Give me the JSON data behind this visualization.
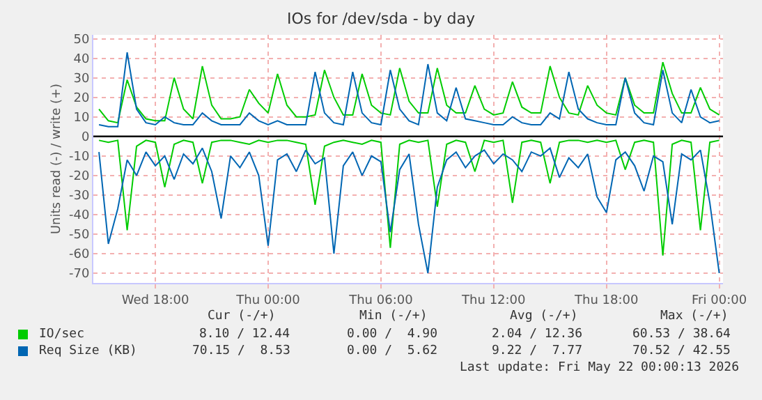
{
  "chart_data": {
    "type": "line",
    "title": "IOs for /dev/sda - by day",
    "ylabel": "Units read (-) / write (+)",
    "x": [
      "2026-05-20T15:00",
      "2026-05-20T15:30",
      "2026-05-20T16:00",
      "2026-05-20T16:30",
      "2026-05-20T17:00",
      "2026-05-20T17:30",
      "2026-05-20T18:00",
      "2026-05-20T18:30",
      "2026-05-20T19:00",
      "2026-05-20T19:30",
      "2026-05-20T20:00",
      "2026-05-20T20:30",
      "2026-05-20T21:00",
      "2026-05-20T21:30",
      "2026-05-20T22:00",
      "2026-05-20T22:30",
      "2026-05-20T23:00",
      "2026-05-20T23:30",
      "2026-05-21T00:00",
      "2026-05-21T00:30",
      "2026-05-21T01:00",
      "2026-05-21T01:30",
      "2026-05-21T02:00",
      "2026-05-21T02:30",
      "2026-05-21T03:00",
      "2026-05-21T03:30",
      "2026-05-21T04:00",
      "2026-05-21T04:30",
      "2026-05-21T05:00",
      "2026-05-21T05:30",
      "2026-05-21T06:00",
      "2026-05-21T06:30",
      "2026-05-21T07:00",
      "2026-05-21T07:30",
      "2026-05-21T08:00",
      "2026-05-21T08:30",
      "2026-05-21T09:00",
      "2026-05-21T09:30",
      "2026-05-21T10:00",
      "2026-05-21T10:30",
      "2026-05-21T11:00",
      "2026-05-21T11:30",
      "2026-05-21T12:00",
      "2026-05-21T12:30",
      "2026-05-21T13:00",
      "2026-05-21T13:30",
      "2026-05-21T14:00",
      "2026-05-21T14:30",
      "2026-05-21T15:00",
      "2026-05-21T15:30",
      "2026-05-21T16:00",
      "2026-05-21T16:30",
      "2026-05-21T17:00",
      "2026-05-21T17:30",
      "2026-05-21T18:00",
      "2026-05-21T18:30",
      "2026-05-21T19:00",
      "2026-05-21T19:30",
      "2026-05-21T20:00",
      "2026-05-21T20:30",
      "2026-05-21T21:00",
      "2026-05-21T21:30",
      "2026-05-21T22:00",
      "2026-05-21T22:30",
      "2026-05-21T23:00",
      "2026-05-21T23:30",
      "2026-05-22T00:00"
    ],
    "series": [
      {
        "name": "IO/sec",
        "color": "#00cc00",
        "values": [
          14,
          8,
          7,
          29,
          15,
          9,
          8,
          8,
          30,
          14,
          9,
          36,
          16,
          9,
          9,
          10,
          24,
          17,
          12,
          32,
          16,
          10,
          10,
          11,
          34,
          20,
          11,
          11,
          32,
          16,
          12,
          11,
          35,
          18,
          12,
          12,
          35,
          16,
          12,
          12,
          26,
          14,
          11,
          12,
          28,
          15,
          12,
          12,
          36,
          20,
          12,
          11,
          26,
          16,
          12,
          11,
          30,
          16,
          12,
          12,
          38,
          22,
          12,
          12,
          25,
          14,
          11
        ]
      },
      {
        "name": "Req Size (KB)",
        "color": "#0066b3",
        "values": [
          6,
          5,
          5,
          43,
          14,
          7,
          6,
          10,
          7,
          6,
          6,
          12,
          8,
          6,
          6,
          6,
          12,
          8,
          6,
          8,
          6,
          6,
          6,
          33,
          12,
          7,
          6,
          33,
          12,
          7,
          6,
          34,
          14,
          8,
          6,
          37,
          12,
          8,
          25,
          9,
          8,
          7,
          6,
          6,
          10,
          7,
          6,
          6,
          12,
          9,
          33,
          14,
          9,
          7,
          6,
          6,
          30,
          12,
          7,
          6,
          34,
          12,
          7,
          24,
          10,
          7,
          8
        ]
      },
      {
        "color": "#00cc00",
        "values": [
          -2,
          -3,
          -2,
          -48,
          -5,
          -2,
          -3,
          -26,
          -4,
          -2,
          -3,
          -24,
          -3,
          -2,
          -2,
          -3,
          -4,
          -2,
          -3,
          -2,
          -2,
          -3,
          -4,
          -35,
          -5,
          -3,
          -2,
          -3,
          -4,
          -2,
          -3,
          -57,
          -4,
          -2,
          -3,
          -2,
          -36,
          -4,
          -2,
          -3,
          -18,
          -2,
          -3,
          -2,
          -34,
          -3,
          -2,
          -3,
          -24,
          -3,
          -2,
          -2,
          -3,
          -2,
          -3,
          -2,
          -17,
          -3,
          -2,
          -3,
          -61,
          -4,
          -2,
          -3,
          -48,
          -3,
          -2
        ]
      },
      {
        "color": "#0066b3",
        "values": [
          -8,
          -55,
          -37,
          -12,
          -20,
          -8,
          -15,
          -10,
          -22,
          -9,
          -14,
          -6,
          -18,
          -42,
          -10,
          -16,
          -8,
          -20,
          -56,
          -12,
          -9,
          -18,
          -7,
          -14,
          -11,
          -60,
          -15,
          -8,
          -20,
          -10,
          -13,
          -49,
          -17,
          -9,
          -45,
          -70,
          -26,
          -12,
          -8,
          -16,
          -10,
          -7,
          -14,
          -9,
          -12,
          -18,
          -8,
          -10,
          -6,
          -21,
          -11,
          -16,
          -9,
          -31,
          -39,
          -12,
          -8,
          -15,
          -28,
          -10,
          -13,
          -45,
          -9,
          -12,
          -7,
          -34,
          -70
        ]
      }
    ],
    "xlim": [
      "2026-05-20T14:42",
      "2026-05-22T00:12"
    ],
    "xticks": [
      {
        "value": "2026-05-20T18:00",
        "label": "Wed 18:00"
      },
      {
        "value": "2026-05-21T00:00",
        "label": "Thu 00:00"
      },
      {
        "value": "2026-05-21T06:00",
        "label": "Thu 06:00"
      },
      {
        "value": "2026-05-21T12:00",
        "label": "Thu 12:00"
      },
      {
        "value": "2026-05-21T18:00",
        "label": "Thu 18:00"
      },
      {
        "value": "2026-05-22T00:00",
        "label": "Fri 00:00"
      }
    ],
    "ylim": [
      -75,
      52
    ],
    "yticks": [
      -70,
      -60,
      -50,
      -40,
      -30,
      -20,
      -10,
      0,
      10,
      20,
      30,
      40,
      50
    ],
    "ref_lines": [
      {
        "axis": "y",
        "value": 0,
        "color": "#000000"
      }
    ],
    "grid": true,
    "legend": "bottom",
    "line_style": "solid",
    "marker": "none",
    "annotations": [
      "Cur (-/+)",
      "Min (-/+)",
      "Avg (-/+)",
      "Max (-/+)",
      "8.10 / 12.44",
      "0.00 /  4.90",
      "2.04 / 12.36",
      "60.53 / 38.64",
      "70.15 /  8.53",
      "0.00 /  5.62",
      "9.22 /  7.77",
      "70.52 / 42.55",
      "Last update: Fri May 22 00:00:13 2026"
    ]
  }
}
